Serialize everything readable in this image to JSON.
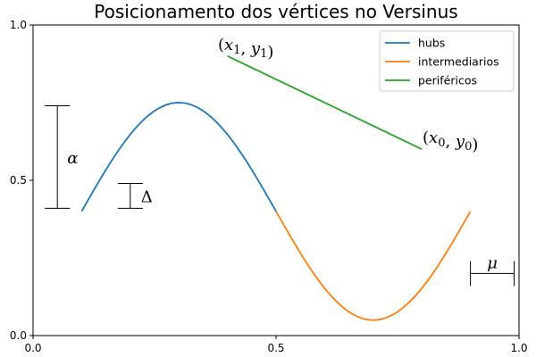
{
  "chart_data": {
    "type": "line",
    "title": "Posicionamento dos vértices no Versinus",
    "xlabel": "",
    "ylabel": "",
    "xlim": [
      0,
      1
    ],
    "ylim": [
      0,
      1
    ],
    "xticks": [
      0,
      0.5,
      1
    ],
    "xtick_labels": [
      "0.0",
      "0.5",
      "1.0"
    ],
    "yticks": [
      0,
      0.5,
      1
    ],
    "ytick_labels": [
      "0.0",
      "0.5",
      "1.0"
    ],
    "grid": false,
    "legend_position": "top-right",
    "series": [
      {
        "name": "hubs",
        "color": "#1f77b4",
        "function": {
          "kind": "sin",
          "x0": 0.1,
          "x1": 0.5,
          "y_min": 0.05,
          "y_max": 0.75,
          "period": 0.8,
          "peak_x": 0.3
        }
      },
      {
        "name": "intermediarios",
        "color": "#ff7f0e",
        "function": {
          "kind": "sin",
          "x0": 0.5,
          "x1": 0.9,
          "y_min": 0.05,
          "y_max": 0.75,
          "period": 0.8,
          "peak_x": 0.3
        }
      },
      {
        "name": "periféricos",
        "color": "#2ca02c",
        "x": [
          0.4,
          0.8
        ],
        "y": [
          0.9,
          0.6
        ]
      }
    ],
    "annotations": {
      "alpha": {
        "symbol": "α",
        "x": 0.05,
        "y_bottom": 0.41,
        "y_top": 0.74
      },
      "delta": {
        "symbol": "Δ",
        "x": 0.2,
        "y_bottom": 0.41,
        "y_top": 0.49
      },
      "mu": {
        "symbol": "μ",
        "y": 0.2,
        "x_left": 0.9,
        "x_right": 0.99
      },
      "point1": {
        "base": "x",
        "sub": "1",
        "base2": "y",
        "sub2": "1",
        "x": 0.4,
        "y": 0.9
      },
      "point0": {
        "base": "x",
        "sub": "0",
        "base2": "y",
        "sub2": "0",
        "x": 0.8,
        "y": 0.6
      }
    }
  }
}
